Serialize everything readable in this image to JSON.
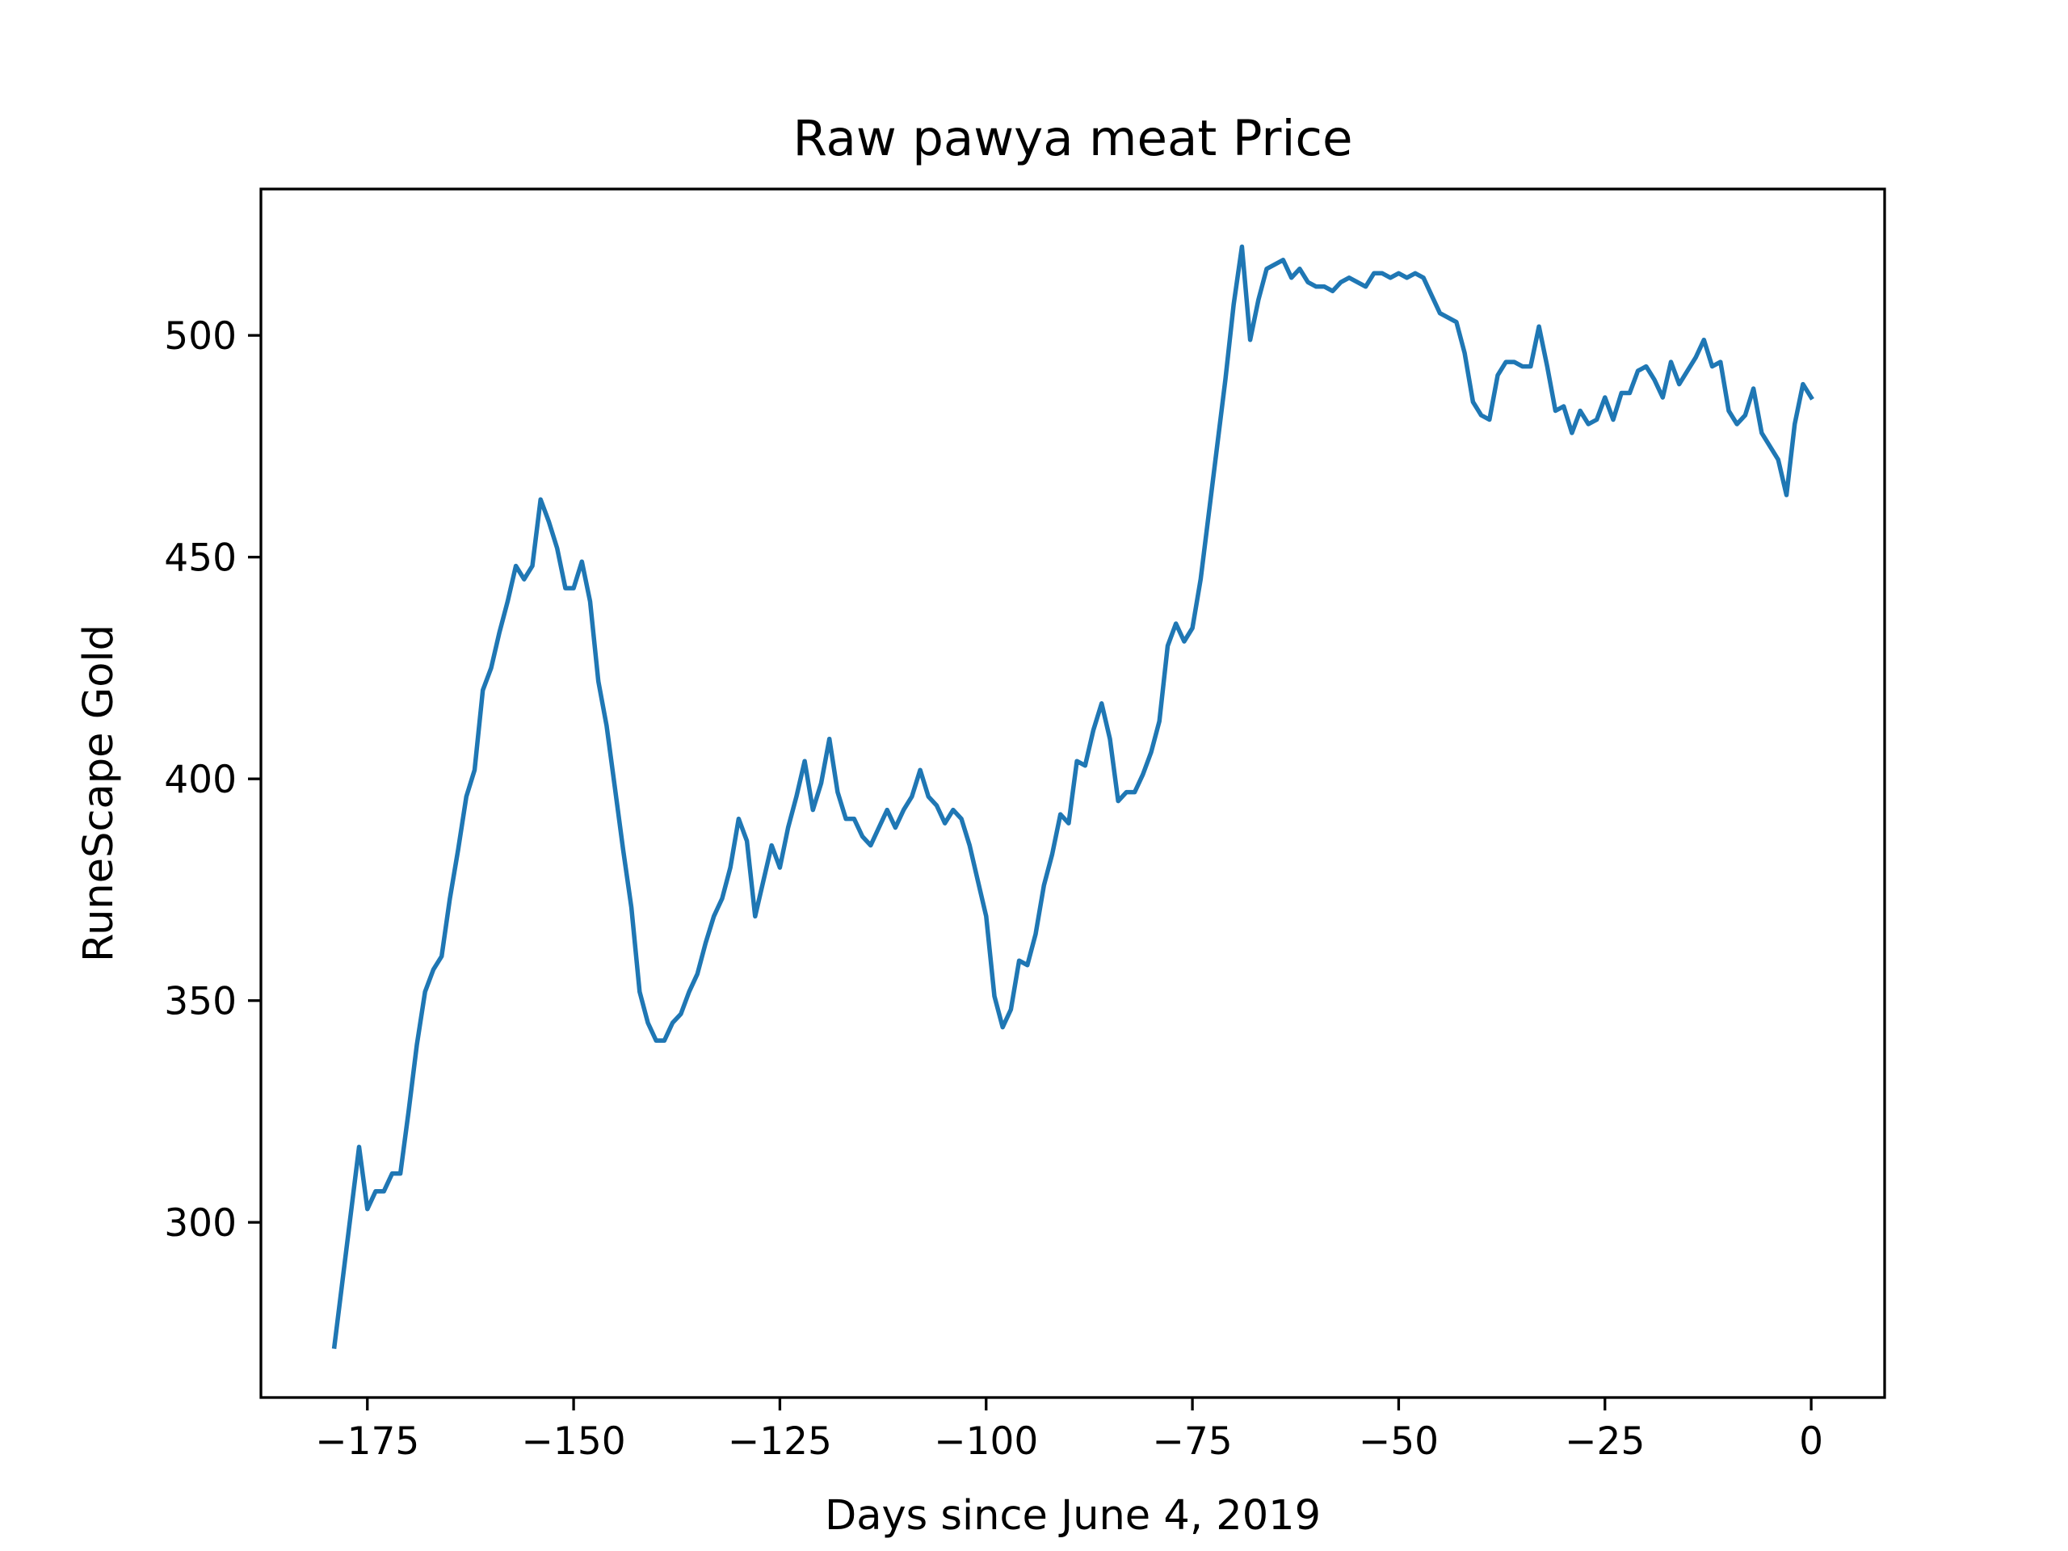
{
  "chart_data": {
    "type": "line",
    "title": "Raw pawya meat Price",
    "xlabel": "Days since June 4, 2019",
    "ylabel": "RuneScape Gold",
    "xlim": [
      -187.9,
      8.9
    ],
    "ylim": [
      260.5,
      533
    ],
    "xticks": [
      -175,
      -150,
      -125,
      -100,
      -75,
      -50,
      -25,
      0
    ],
    "xtick_labels": [
      "−175",
      "−150",
      "−125",
      "−100",
      "−75",
      "−50",
      "−25",
      "0"
    ],
    "yticks": [
      300,
      350,
      400,
      450,
      500
    ],
    "ytick_labels": [
      "300",
      "350",
      "400",
      "450",
      "500"
    ],
    "grid": false,
    "legend": "none",
    "series": [
      {
        "color": "#1f77b4",
        "x": [
          -179,
          -178,
          -177,
          -176,
          -175,
          -174,
          -173,
          -172,
          -171,
          -170,
          -169,
          -168,
          -167,
          -166,
          -165,
          -164,
          -163,
          -162,
          -161,
          -160,
          -159,
          -158,
          -157,
          -156,
          -155,
          -154,
          -153,
          -152,
          -151,
          -150,
          -149,
          -148,
          -147,
          -146,
          -145,
          -144,
          -143,
          -142,
          -141,
          -140,
          -139,
          -138,
          -137,
          -136,
          -135,
          -134,
          -133,
          -132,
          -131,
          -130,
          -129,
          -128,
          -127,
          -126,
          -125,
          -124,
          -123,
          -122,
          -121,
          -120,
          -119,
          -118,
          -117,
          -116,
          -115,
          -114,
          -113,
          -112,
          -111,
          -110,
          -109,
          -108,
          -107,
          -106,
          -105,
          -104,
          -103,
          -102,
          -101,
          -100,
          -99,
          -98,
          -97,
          -96,
          -95,
          -94,
          -93,
          -92,
          -91,
          -90,
          -89,
          -88,
          -87,
          -86,
          -85,
          -84,
          -83,
          -82,
          -81,
          -80,
          -79,
          -78,
          -77,
          -76,
          -75,
          -74,
          -73,
          -72,
          -71,
          -70,
          -69,
          -68,
          -67,
          -66,
          -65,
          -64,
          -63,
          -62,
          -61,
          -60,
          -59,
          -58,
          -57,
          -56,
          -55,
          -54,
          -53,
          -52,
          -51,
          -50,
          -49,
          -48,
          -47,
          -46,
          -45,
          -44,
          -43,
          -42,
          -41,
          -40,
          -39,
          -38,
          -37,
          -36,
          -35,
          -34,
          -33,
          -32,
          -31,
          -30,
          -29,
          -28,
          -27,
          -26,
          -25,
          -24,
          -23,
          -22,
          -21,
          -20,
          -19,
          -18,
          -17,
          -16,
          -15,
          -14,
          -13,
          -12,
          -11,
          -10,
          -9,
          -8,
          -7,
          -6,
          -5,
          -4,
          -3,
          -2,
          -1,
          0
        ],
        "y": [
          272,
          287,
          302,
          317,
          303,
          307,
          307,
          311,
          311,
          325,
          340,
          352,
          357,
          360,
          373,
          384,
          396,
          402,
          420,
          425,
          433,
          440,
          448,
          445,
          448,
          463,
          458,
          452,
          443,
          443,
          449,
          440,
          422,
          412,
          398,
          384,
          371,
          352,
          345,
          341,
          341,
          345,
          347,
          352,
          356,
          363,
          369,
          373,
          380,
          391,
          386,
          369,
          377,
          385,
          380,
          389,
          396,
          404,
          393,
          399,
          409,
          397,
          391,
          391,
          387,
          385,
          389,
          393,
          389,
          393,
          396,
          402,
          396,
          394,
          390,
          393,
          391,
          385,
          377,
          369,
          351,
          344,
          348,
          359,
          358,
          365,
          376,
          383,
          392,
          390,
          404,
          403,
          411,
          417,
          409,
          395,
          397,
          397,
          401,
          406,
          413,
          430,
          435,
          431,
          434,
          445,
          460,
          475,
          490,
          507,
          520,
          499,
          508,
          515,
          516,
          517,
          513,
          515,
          512,
          511,
          511,
          510,
          512,
          513,
          512,
          511,
          514,
          514,
          513,
          514,
          513,
          514,
          513,
          509,
          505,
          504,
          503,
          496,
          485,
          482,
          481,
          491,
          494,
          494,
          493,
          493,
          502,
          493,
          483,
          484,
          478,
          483,
          480,
          481,
          486,
          481,
          487,
          487,
          492,
          493,
          490,
          486,
          494,
          489,
          492,
          495,
          499,
          493,
          494,
          483,
          480,
          482,
          488,
          478,
          475,
          472,
          464,
          480,
          489,
          486
        ]
      }
    ]
  }
}
